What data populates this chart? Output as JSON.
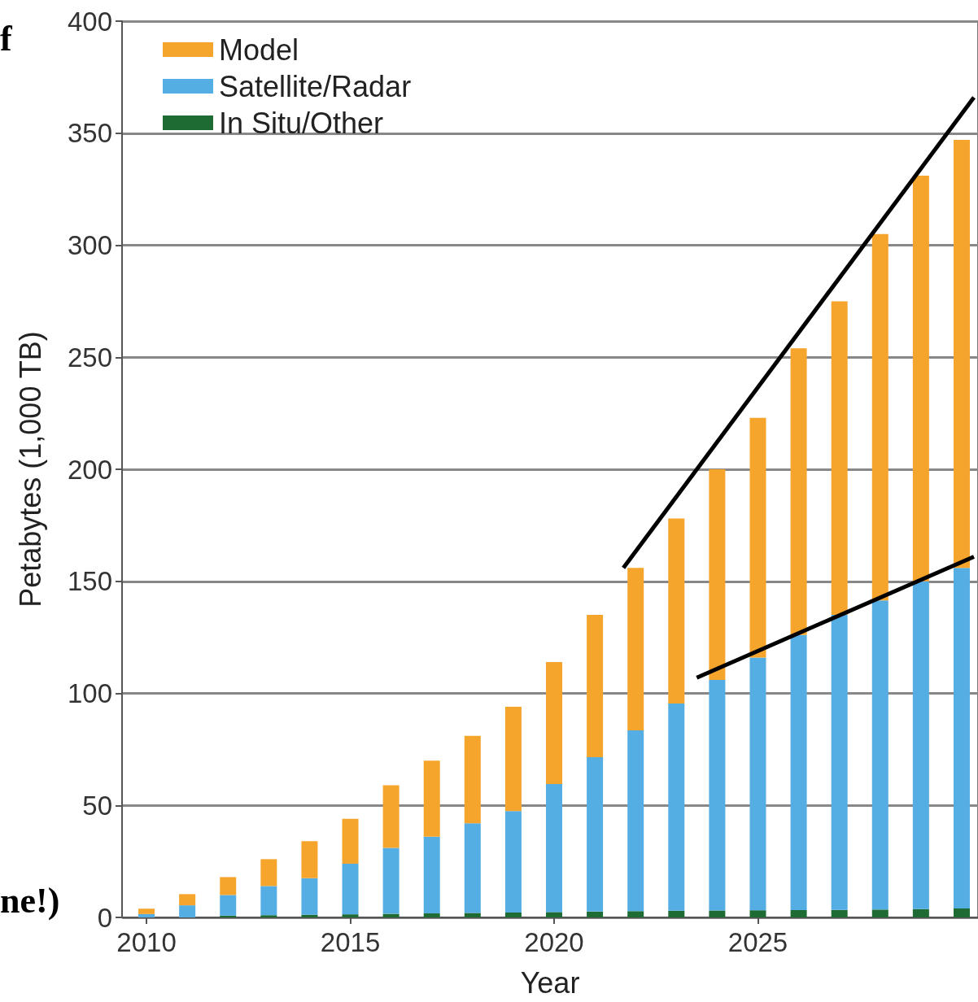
{
  "chart_data": {
    "type": "bar",
    "stacked": true,
    "xlabel": "Year",
    "ylabel": "Petabytes (1,000 TB)",
    "x": [
      2010,
      2011,
      2012,
      2013,
      2014,
      2015,
      2016,
      2017,
      2018,
      2019,
      2020,
      2021,
      2022,
      2023,
      2024,
      2025,
      2026,
      2027,
      2028,
      2029,
      2030
    ],
    "series": [
      {
        "name": "In Situ/Other",
        "color": "#1e6b33",
        "values": [
          null,
          null,
          0.8,
          1,
          1.2,
          1.4,
          1.6,
          1.8,
          2,
          2.2,
          2.4,
          2.6,
          2.8,
          3,
          3.1,
          3.2,
          3.3,
          3.4,
          3.5,
          3.7,
          4
        ]
      },
      {
        "name": "Satellite/Radar",
        "color": "#55aee3",
        "values": [
          1.5,
          5.4,
          9.2,
          13,
          16.3,
          22.6,
          29.4,
          34.2,
          40,
          45.3,
          57.1,
          68.9,
          80.7,
          92.5,
          102.9,
          112.8,
          122.7,
          131.6,
          138,
          146.3,
          152
        ]
      },
      {
        "name": "Model",
        "color": "#f6a52c",
        "values": [
          2.4,
          5,
          8,
          12,
          16.5,
          20,
          28,
          34,
          39,
          46.5,
          54.5,
          63.5,
          72.5,
          82.5,
          94,
          107,
          128,
          140,
          163.5,
          181,
          191
        ]
      },
      {
        "type": "line",
        "color": "#000000",
        "x": [
          2021.7,
          2030.3
        ],
        "values": [
          156,
          366
        ]
      },
      {
        "type": "line",
        "color": "#000000",
        "x": [
          2023.5,
          2030.3
        ],
        "values": [
          107,
          161
        ]
      }
    ],
    "xlim": [
      2009.4,
      2030.4
    ],
    "xticks": [
      2010,
      2015,
      2020,
      2025
    ],
    "ylim": [
      0,
      400
    ],
    "yticks": [
      0,
      50,
      100,
      150,
      200,
      250,
      300,
      350,
      400
    ],
    "grid": "y",
    "legend": "top left",
    "annotations": [
      "f",
      "ne!)"
    ]
  }
}
